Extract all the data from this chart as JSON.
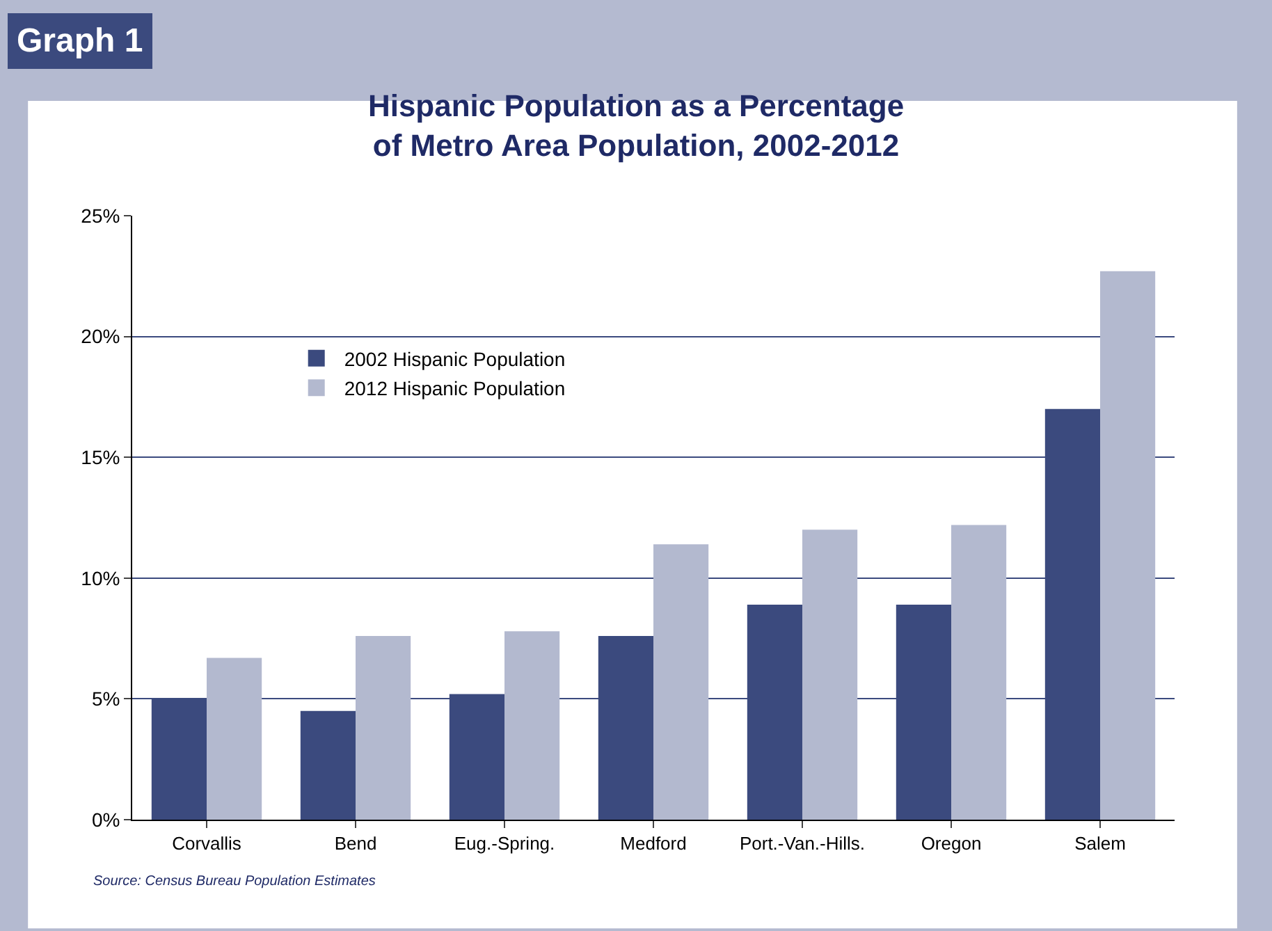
{
  "chart_data": {
    "type": "bar",
    "title": "Hispanic Population as a Percentage\nof Metro Area Population, 2002-2012",
    "categories": [
      "Corvallis",
      "Bend",
      "Eug.-Spring.",
      "Medford",
      "Port.-Van.-Hills.",
      "Oregon",
      "Salem"
    ],
    "series": [
      {
        "name": "2002 Hispanic Population",
        "color": "#3b4a7e",
        "values": [
          5.0,
          4.5,
          5.2,
          7.6,
          8.9,
          8.9,
          17.0
        ]
      },
      {
        "name": "2012 Hispanic Population",
        "color": "#b3b9cf",
        "values": [
          6.7,
          7.6,
          7.8,
          11.4,
          12.0,
          12.2,
          22.7
        ]
      }
    ],
    "ylim": [
      0,
      25
    ],
    "yticks": [
      {
        "value": 0,
        "label": "0%"
      },
      {
        "value": 5,
        "label": "5%"
      },
      {
        "value": 10,
        "label": "10%"
      },
      {
        "value": 15,
        "label": "15%"
      },
      {
        "value": 20,
        "label": "20%"
      },
      {
        "value": 25,
        "label": "25%"
      }
    ],
    "grid": "y",
    "legend": "top left",
    "annotations": [
      "Graph 1",
      "Source: Census Bureau Population Estimates"
    ]
  }
}
